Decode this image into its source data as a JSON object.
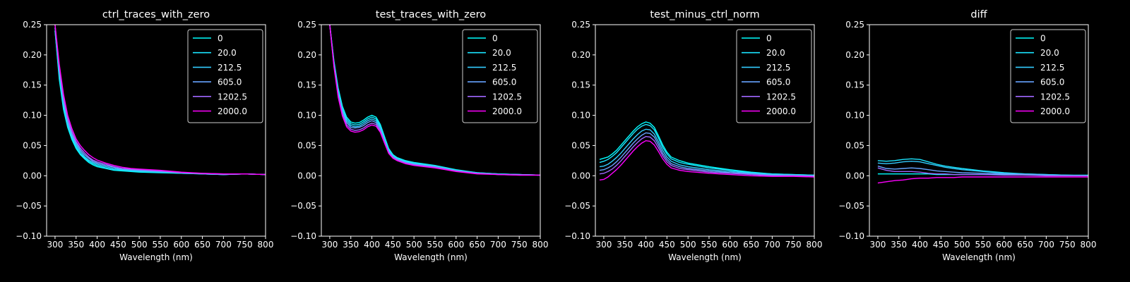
{
  "figure": {
    "background": "#000000",
    "foreground": "#ffffff"
  },
  "chart_data": [
    {
      "type": "line",
      "title": "ctrl_traces_with_zero",
      "xlabel": "Wavelength (nm)",
      "ylabel": "",
      "xlim": [
        280,
        800
      ],
      "ylim": [
        -0.1,
        0.25
      ],
      "xticks": [
        "300",
        "350",
        "400",
        "450",
        "500",
        "550",
        "600",
        "650",
        "700",
        "750",
        "800"
      ],
      "yticks": [
        "−0.10",
        "−0.05",
        "0.00",
        "0.05",
        "0.10",
        "0.15",
        "0.20",
        "0.25"
      ],
      "grid": false,
      "legend": "top-right",
      "x": [
        300,
        310,
        320,
        330,
        340,
        350,
        360,
        370,
        380,
        390,
        400,
        420,
        440,
        460,
        480,
        500,
        550,
        600,
        650,
        700,
        750,
        800
      ],
      "series": [
        {
          "name": "0",
          "color": "#00ffff",
          "values": [
            0.24,
            0.16,
            0.11,
            0.08,
            0.06,
            0.045,
            0.035,
            0.028,
            0.022,
            0.018,
            0.015,
            0.012,
            0.009,
            0.008,
            0.007,
            0.006,
            0.005,
            0.004,
            0.003,
            0.002,
            0.003,
            0.002
          ]
        },
        {
          "name": "20.0",
          "color": "#1ae5ff",
          "values": [
            0.24,
            0.165,
            0.115,
            0.083,
            0.063,
            0.048,
            0.037,
            0.03,
            0.024,
            0.02,
            0.017,
            0.013,
            0.01,
            0.009,
            0.008,
            0.007,
            0.006,
            0.004,
            0.003,
            0.002,
            0.003,
            0.002
          ]
        },
        {
          "name": "212.5",
          "color": "#33ccff",
          "values": [
            0.245,
            0.17,
            0.12,
            0.087,
            0.066,
            0.051,
            0.04,
            0.032,
            0.026,
            0.022,
            0.019,
            0.015,
            0.012,
            0.01,
            0.009,
            0.008,
            0.006,
            0.005,
            0.003,
            0.002,
            0.003,
            0.002
          ]
        },
        {
          "name": "605.0",
          "color": "#66a3ff",
          "values": [
            0.245,
            0.175,
            0.125,
            0.09,
            0.069,
            0.054,
            0.043,
            0.035,
            0.029,
            0.024,
            0.021,
            0.017,
            0.014,
            0.011,
            0.01,
            0.009,
            0.007,
            0.005,
            0.003,
            0.002,
            0.003,
            0.002
          ]
        },
        {
          "name": "1202.5",
          "color": "#a066ff",
          "values": [
            0.25,
            0.18,
            0.13,
            0.095,
            0.073,
            0.057,
            0.046,
            0.038,
            0.031,
            0.026,
            0.023,
            0.019,
            0.015,
            0.012,
            0.011,
            0.01,
            0.008,
            0.005,
            0.004,
            0.003,
            0.003,
            0.002
          ]
        },
        {
          "name": "2000.0",
          "color": "#ff00ff",
          "values": [
            0.25,
            0.185,
            0.135,
            0.1,
            0.078,
            0.061,
            0.05,
            0.042,
            0.035,
            0.03,
            0.026,
            0.021,
            0.017,
            0.014,
            0.012,
            0.011,
            0.009,
            0.006,
            0.004,
            0.003,
            0.003,
            0.002
          ]
        }
      ]
    },
    {
      "type": "line",
      "title": "test_traces_with_zero",
      "xlabel": "Wavelength (nm)",
      "ylabel": "",
      "xlim": [
        280,
        800
      ],
      "ylim": [
        -0.1,
        0.25
      ],
      "xticks": [
        "300",
        "350",
        "400",
        "450",
        "500",
        "550",
        "600",
        "650",
        "700",
        "750",
        "800"
      ],
      "yticks": [
        "−0.10",
        "−0.05",
        "0.00",
        "0.05",
        "0.10",
        "0.15",
        "0.20",
        "0.25"
      ],
      "grid": false,
      "legend": "top-right",
      "x": [
        300,
        310,
        320,
        330,
        340,
        350,
        360,
        370,
        380,
        390,
        400,
        410,
        420,
        430,
        440,
        450,
        460,
        480,
        500,
        550,
        600,
        650,
        700,
        750,
        800
      ],
      "series": [
        {
          "name": "0",
          "color": "#00ffff",
          "values": [
            0.25,
            0.19,
            0.145,
            0.115,
            0.097,
            0.089,
            0.087,
            0.088,
            0.092,
            0.097,
            0.1,
            0.097,
            0.085,
            0.065,
            0.045,
            0.035,
            0.03,
            0.025,
            0.022,
            0.017,
            0.01,
            0.005,
            0.003,
            0.002,
            0.001
          ]
        },
        {
          "name": "20.0",
          "color": "#1ae5ff",
          "values": [
            0.25,
            0.188,
            0.142,
            0.112,
            0.094,
            0.086,
            0.084,
            0.085,
            0.089,
            0.094,
            0.097,
            0.094,
            0.082,
            0.062,
            0.043,
            0.034,
            0.029,
            0.024,
            0.021,
            0.016,
            0.009,
            0.005,
            0.003,
            0.002,
            0.001
          ]
        },
        {
          "name": "212.5",
          "color": "#33ccff",
          "values": [
            0.25,
            0.186,
            0.139,
            0.109,
            0.091,
            0.083,
            0.081,
            0.082,
            0.086,
            0.091,
            0.094,
            0.091,
            0.08,
            0.06,
            0.041,
            0.033,
            0.028,
            0.023,
            0.02,
            0.016,
            0.009,
            0.004,
            0.003,
            0.002,
            0.001
          ]
        },
        {
          "name": "605.0",
          "color": "#66a3ff",
          "values": [
            0.25,
            0.184,
            0.136,
            0.106,
            0.088,
            0.08,
            0.079,
            0.08,
            0.083,
            0.088,
            0.091,
            0.088,
            0.077,
            0.058,
            0.04,
            0.031,
            0.027,
            0.022,
            0.019,
            0.015,
            0.008,
            0.004,
            0.002,
            0.002,
            0.001
          ]
        },
        {
          "name": "1202.5",
          "color": "#a066ff",
          "values": [
            0.25,
            0.182,
            0.133,
            0.102,
            0.084,
            0.077,
            0.075,
            0.076,
            0.079,
            0.084,
            0.087,
            0.085,
            0.074,
            0.056,
            0.038,
            0.03,
            0.026,
            0.021,
            0.018,
            0.014,
            0.008,
            0.004,
            0.002,
            0.001,
            0.001
          ]
        },
        {
          "name": "2000.0",
          "color": "#ff00ff",
          "values": [
            0.25,
            0.18,
            0.13,
            0.099,
            0.081,
            0.074,
            0.072,
            0.073,
            0.076,
            0.081,
            0.084,
            0.082,
            0.072,
            0.054,
            0.037,
            0.029,
            0.025,
            0.02,
            0.017,
            0.013,
            0.007,
            0.003,
            0.002,
            0.001,
            0.001
          ]
        }
      ]
    },
    {
      "type": "line",
      "title": "test_minus_ctrl_norm",
      "xlabel": "Wavelength (nm)",
      "ylabel": "",
      "xlim": [
        280,
        800
      ],
      "ylim": [
        -0.1,
        0.25
      ],
      "xticks": [
        "300",
        "350",
        "400",
        "450",
        "500",
        "550",
        "600",
        "650",
        "700",
        "750",
        "800"
      ],
      "yticks": [
        "−0.10",
        "−0.05",
        "0.00",
        "0.05",
        "0.10",
        "0.15",
        "0.20",
        "0.25"
      ],
      "grid": false,
      "legend": "top-right",
      "x": [
        290,
        300,
        310,
        320,
        330,
        340,
        350,
        360,
        370,
        380,
        390,
        400,
        410,
        420,
        430,
        440,
        450,
        460,
        480,
        500,
        550,
        600,
        650,
        700,
        750,
        800
      ],
      "series": [
        {
          "name": "0",
          "color": "#00ffff",
          "values": [
            0.027,
            0.029,
            0.031,
            0.036,
            0.042,
            0.05,
            0.058,
            0.066,
            0.074,
            0.081,
            0.086,
            0.089,
            0.087,
            0.08,
            0.066,
            0.051,
            0.039,
            0.031,
            0.025,
            0.021,
            0.015,
            0.01,
            0.006,
            0.003,
            0.002,
            0.001
          ]
        },
        {
          "name": "20.0",
          "color": "#1ae5ff",
          "values": [
            0.022,
            0.024,
            0.027,
            0.032,
            0.038,
            0.046,
            0.054,
            0.062,
            0.07,
            0.077,
            0.082,
            0.085,
            0.083,
            0.076,
            0.062,
            0.047,
            0.036,
            0.028,
            0.022,
            0.019,
            0.013,
            0.009,
            0.005,
            0.003,
            0.002,
            0.001
          ]
        },
        {
          "name": "212.5",
          "color": "#33ccff",
          "values": [
            0.015,
            0.016,
            0.019,
            0.024,
            0.03,
            0.037,
            0.045,
            0.053,
            0.061,
            0.068,
            0.074,
            0.077,
            0.076,
            0.069,
            0.056,
            0.042,
            0.031,
            0.024,
            0.018,
            0.015,
            0.01,
            0.007,
            0.004,
            0.002,
            0.001,
            0.0
          ]
        },
        {
          "name": "605.0",
          "color": "#66a3ff",
          "values": [
            0.009,
            0.01,
            0.013,
            0.017,
            0.023,
            0.03,
            0.038,
            0.046,
            0.054,
            0.061,
            0.067,
            0.071,
            0.07,
            0.064,
            0.051,
            0.037,
            0.027,
            0.02,
            0.015,
            0.012,
            0.008,
            0.005,
            0.003,
            0.001,
            0.001,
            0.0
          ]
        },
        {
          "name": "1202.5",
          "color": "#a066ff",
          "values": [
            0.003,
            0.004,
            0.007,
            0.011,
            0.017,
            0.024,
            0.032,
            0.04,
            0.048,
            0.055,
            0.061,
            0.065,
            0.064,
            0.058,
            0.046,
            0.033,
            0.023,
            0.017,
            0.012,
            0.01,
            0.006,
            0.004,
            0.002,
            0.0,
            0.0,
            -0.001
          ]
        },
        {
          "name": "2000.0",
          "color": "#ff00ff",
          "values": [
            -0.007,
            -0.006,
            -0.002,
            0.004,
            0.01,
            0.017,
            0.025,
            0.033,
            0.041,
            0.048,
            0.054,
            0.058,
            0.057,
            0.051,
            0.04,
            0.028,
            0.019,
            0.013,
            0.009,
            0.007,
            0.004,
            0.002,
            0.0,
            -0.001,
            -0.001,
            -0.002
          ]
        }
      ]
    },
    {
      "type": "line",
      "title": "diff",
      "xlabel": "Wavelength (nm)",
      "ylabel": "",
      "xlim": [
        280,
        800
      ],
      "ylim": [
        -0.1,
        0.25
      ],
      "xticks": [
        "300",
        "350",
        "400",
        "450",
        "500",
        "550",
        "600",
        "650",
        "700",
        "750",
        "800"
      ],
      "yticks": [
        "−0.10",
        "−0.05",
        "0.00",
        "0.05",
        "0.10",
        "0.15",
        "0.20",
        "0.25"
      ],
      "grid": false,
      "legend": "top-right",
      "x": [
        300,
        320,
        340,
        360,
        380,
        400,
        420,
        440,
        460,
        480,
        500,
        550,
        600,
        650,
        700,
        750,
        800
      ],
      "series": [
        {
          "name": "0",
          "color": "#00ffff",
          "values": [
            0.003,
            0.003,
            0.003,
            0.003,
            0.003,
            0.003,
            0.003,
            0.002,
            0.002,
            0.002,
            0.002,
            0.002,
            0.002,
            0.001,
            0.001,
            0.001,
            0.001
          ]
        },
        {
          "name": "20.0",
          "color": "#1ae5ff",
          "values": [
            0.025,
            0.024,
            0.025,
            0.027,
            0.028,
            0.027,
            0.023,
            0.019,
            0.016,
            0.014,
            0.012,
            0.008,
            0.005,
            0.003,
            0.002,
            0.001,
            0.0
          ]
        },
        {
          "name": "212.5",
          "color": "#33ccff",
          "values": [
            0.021,
            0.02,
            0.021,
            0.023,
            0.024,
            0.023,
            0.02,
            0.017,
            0.014,
            0.012,
            0.01,
            0.007,
            0.004,
            0.003,
            0.002,
            0.001,
            0.0
          ]
        },
        {
          "name": "605.0",
          "color": "#66a3ff",
          "values": [
            0.016,
            0.012,
            0.011,
            0.012,
            0.013,
            0.012,
            0.01,
            0.008,
            0.007,
            0.006,
            0.005,
            0.004,
            0.003,
            0.002,
            0.001,
            0.0,
            0.0
          ]
        },
        {
          "name": "1202.5",
          "color": "#a066ff",
          "values": [
            0.013,
            0.009,
            0.007,
            0.007,
            0.007,
            0.006,
            0.004,
            0.003,
            0.003,
            0.002,
            0.002,
            0.002,
            0.001,
            0.001,
            0.0,
            0.0,
            0.0
          ]
        },
        {
          "name": "2000.0",
          "color": "#ff00ff",
          "values": [
            -0.012,
            -0.01,
            -0.008,
            -0.007,
            -0.005,
            -0.004,
            -0.004,
            -0.003,
            -0.003,
            -0.003,
            -0.002,
            -0.002,
            -0.002,
            -0.002,
            -0.002,
            -0.002,
            -0.002
          ]
        }
      ]
    }
  ]
}
